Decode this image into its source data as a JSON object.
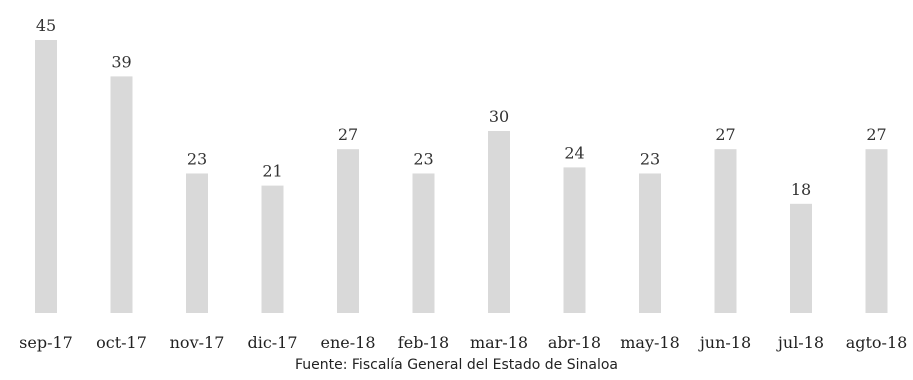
{
  "chart_data": {
    "type": "bar",
    "categories": [
      "sep-17",
      "oct-17",
      "nov-17",
      "dic-17",
      "ene-18",
      "feb-18",
      "mar-18",
      "abr-18",
      "may-18",
      "jun-18",
      "jul-18",
      "agto-18"
    ],
    "values": [
      45,
      39,
      23,
      21,
      27,
      23,
      30,
      24,
      23,
      27,
      18,
      27
    ],
    "ylim": [
      0,
      45
    ],
    "grid": false,
    "bar_color": "#d9d9d9",
    "data_labels": true
  },
  "source_note": "Fuente: Fiscalía General del Estado de Sinaloa"
}
